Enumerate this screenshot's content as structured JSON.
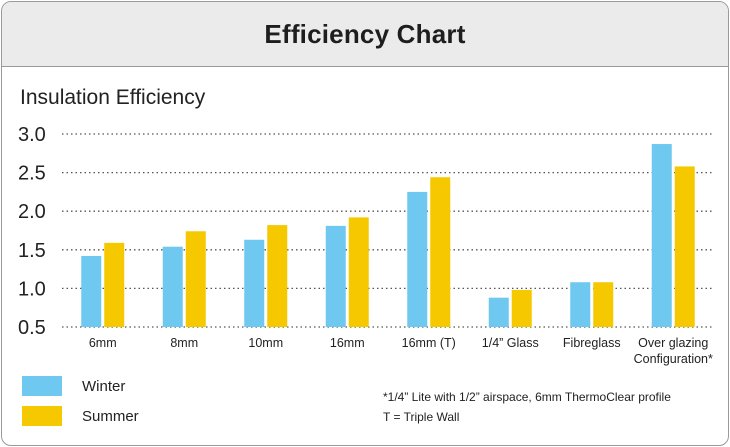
{
  "title": "Efficiency Chart",
  "colors": {
    "winter": "#6ec8f0",
    "summer": "#f5c800",
    "grid": "#555555"
  },
  "chart_data": {
    "type": "bar",
    "title": "Efficiency Chart",
    "ylabel": "Insulation Efficiency",
    "xlabel": "",
    "ylim": [
      0.5,
      3.0
    ],
    "yticks": [
      "3.0",
      "2.5",
      "2.0",
      "1.5",
      "1.0",
      "0.5"
    ],
    "ytick_values": [
      3.0,
      2.5,
      2.0,
      1.5,
      1.0,
      0.5
    ],
    "grid": "horizontal dotted",
    "categories": [
      "6mm",
      "8mm",
      "10mm",
      "16mm",
      "16mm (T)",
      "1/4” Glass",
      "Fibreglass",
      "Over glazing Configuration*"
    ],
    "category_lines": [
      [
        "6mm"
      ],
      [
        "8mm"
      ],
      [
        "10mm"
      ],
      [
        "16mm"
      ],
      [
        "16mm (T)"
      ],
      [
        "1/4” Glass"
      ],
      [
        "Fibreglass"
      ],
      [
        "Over glazing",
        "Configuration*"
      ]
    ],
    "series": [
      {
        "name": "Winter",
        "values": [
          1.42,
          1.54,
          1.63,
          1.81,
          2.25,
          0.88,
          1.08,
          2.87
        ]
      },
      {
        "name": "Summer",
        "values": [
          1.59,
          1.74,
          1.82,
          1.92,
          2.44,
          0.98,
          1.08,
          2.58
        ]
      }
    ],
    "legend_position": "bottom-left"
  },
  "legend": {
    "winter": "Winter",
    "summer": "Summer"
  },
  "notes": {
    "footnote": "*1/4” Lite with 1/2” airspace, 6mm ThermoClear profile",
    "abbrev": "T = Triple Wall"
  }
}
